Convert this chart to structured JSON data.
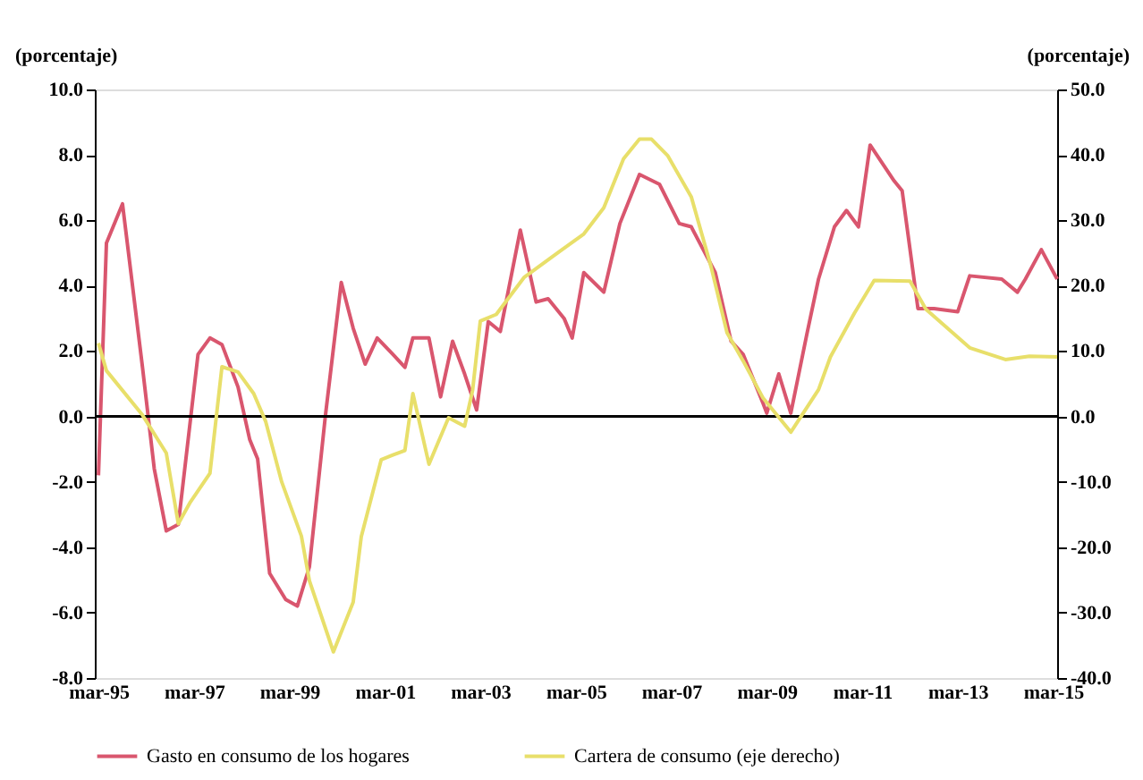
{
  "chart_data": {
    "type": "line",
    "ylabel": "(porcentaje)",
    "y2label": "(porcentaje)",
    "xlim": [
      "1995-02",
      "2015-04"
    ],
    "xticks": [
      {
        "value": "1995-03",
        "label": "mar-95"
      },
      {
        "value": "1997-03",
        "label": "mar-97"
      },
      {
        "value": "1999-03",
        "label": "mar-99"
      },
      {
        "value": "2001-03",
        "label": "mar-01"
      },
      {
        "value": "2003-03",
        "label": "mar-03"
      },
      {
        "value": "2005-03",
        "label": "mar-05"
      },
      {
        "value": "2007-03",
        "label": "mar-07"
      },
      {
        "value": "2009-03",
        "label": "mar-09"
      },
      {
        "value": "2011-03",
        "label": "mar-11"
      },
      {
        "value": "2013-03",
        "label": "mar-13"
      },
      {
        "value": "2015-03",
        "label": "mar-15"
      }
    ],
    "ylim": [
      -8,
      10
    ],
    "yticks": [
      {
        "value": -8,
        "label": "-8.0"
      },
      {
        "value": -6,
        "label": "-6.0"
      },
      {
        "value": -4,
        "label": "-4.0"
      },
      {
        "value": -2,
        "label": "-2.0"
      },
      {
        "value": 0,
        "label": "0.0"
      },
      {
        "value": 2,
        "label": "2.0"
      },
      {
        "value": 4,
        "label": "4.0"
      },
      {
        "value": 6,
        "label": "6.0"
      },
      {
        "value": 8,
        "label": "8.0"
      },
      {
        "value": 10,
        "label": "10.0"
      }
    ],
    "y2lim": [
      -40,
      50
    ],
    "y2ticks": [
      {
        "value": -40,
        "label": "-40.0"
      },
      {
        "value": -30,
        "label": "-30.0"
      },
      {
        "value": -20,
        "label": "-20.0"
      },
      {
        "value": -10,
        "label": "-10.0"
      },
      {
        "value": 0,
        "label": "0.0"
      },
      {
        "value": 10,
        "label": "10.0"
      },
      {
        "value": 20,
        "label": "20.0"
      },
      {
        "value": 30,
        "label": "30.0"
      },
      {
        "value": 40,
        "label": "40.0"
      },
      {
        "value": 50,
        "label": "50.0"
      }
    ],
    "grid": false,
    "legend": "bottom",
    "marker": "none",
    "line_style": "solid",
    "ref_lines": [
      {
        "axis": "y",
        "value": 0,
        "color": "#000000"
      }
    ],
    "series": [
      {
        "name": "Gasto en consumo de los hogares",
        "color": "#d9566e",
        "x": [
          "1995-03",
          "1995-05",
          "1995-09",
          "1996-02",
          "1996-05",
          "1996-08",
          "1996-11",
          "1997-04",
          "1997-07",
          "1997-10",
          "1998-02",
          "1998-05",
          "1998-07",
          "1998-10",
          "1999-02",
          "1999-05",
          "1999-08",
          "1999-12",
          "2000-04",
          "2000-07",
          "2000-10",
          "2001-01",
          "2001-05",
          "2001-08",
          "2001-10",
          "2002-02",
          "2002-05",
          "2002-08",
          "2002-11",
          "2003-02",
          "2003-05",
          "2003-08",
          "2004-01",
          "2004-05",
          "2004-08",
          "2004-12",
          "2005-02",
          "2005-05",
          "2005-10",
          "2006-02",
          "2006-07",
          "2006-12",
          "2007-05",
          "2007-08",
          "2007-11",
          "2008-02",
          "2008-06",
          "2008-09",
          "2009-02",
          "2009-03",
          "2009-06",
          "2009-09",
          "2010-01",
          "2010-04",
          "2010-08",
          "2010-11",
          "2011-02",
          "2011-05",
          "2011-11",
          "2012-01",
          "2012-05",
          "2012-09",
          "2013-03",
          "2013-06",
          "2014-02",
          "2014-06",
          "2014-08",
          "2014-12",
          "2015-04"
        ],
        "values": [
          -1.8,
          5.3,
          6.5,
          1.5,
          -1.6,
          -3.5,
          -3.3,
          1.9,
          2.4,
          2.2,
          0.9,
          -0.7,
          -1.3,
          -4.8,
          -5.6,
          -5.8,
          -4.6,
          0.0,
          4.1,
          2.7,
          1.6,
          2.4,
          1.9,
          1.5,
          2.4,
          2.4,
          0.6,
          2.3,
          1.3,
          0.2,
          2.9,
          2.6,
          5.7,
          3.5,
          3.6,
          3.0,
          2.4,
          4.4,
          3.8,
          5.9,
          7.4,
          7.1,
          5.9,
          5.8,
          5.1,
          4.4,
          2.3,
          1.9,
          0.4,
          0.1,
          1.3,
          0.1,
          2.5,
          4.2,
          5.8,
          6.3,
          5.8,
          8.3,
          7.2,
          6.9,
          3.3,
          3.3,
          3.2,
          4.3,
          4.2,
          3.8,
          4.2,
          5.1,
          4.2
        ]
      },
      {
        "name": "Cartera de consumo (eje derecho)",
        "color": "#e8df6a",
        "axis": "y2",
        "x": [
          "1995-03",
          "1995-05",
          "1996-02",
          "1996-08",
          "1996-11",
          "1997-02",
          "1997-07",
          "1997-10",
          "1998-02",
          "1998-06",
          "1998-09",
          "1999-01",
          "1999-06",
          "1999-08",
          "2000-02",
          "2000-07",
          "2000-09",
          "2001-02",
          "2001-05",
          "2001-08",
          "2001-10",
          "2002-02",
          "2002-07",
          "2002-11",
          "2003-01",
          "2003-03",
          "2003-07",
          "2004-02",
          "2004-11",
          "2005-05",
          "2005-10",
          "2006-03",
          "2006-07",
          "2006-10",
          "2007-02",
          "2007-08",
          "2008-01",
          "2008-05",
          "2008-09",
          "2009-02",
          "2009-09",
          "2010-04",
          "2010-07",
          "2011-01",
          "2011-06",
          "2012-03",
          "2012-07",
          "2013-06",
          "2014-03",
          "2014-09",
          "2015-04"
        ],
        "values": [
          11.2,
          7.0,
          0.2,
          -5.6,
          -16.4,
          -13.1,
          -8.7,
          7.6,
          6.8,
          3.5,
          -0.8,
          -10.0,
          -18.3,
          -25.1,
          -36.0,
          -28.4,
          -18.4,
          -6.6,
          -5.9,
          -5.2,
          3.5,
          -7.3,
          -0.2,
          -1.5,
          4.0,
          14.6,
          15.6,
          21.3,
          25.3,
          27.9,
          31.9,
          39.4,
          42.4,
          42.4,
          39.9,
          33.6,
          22.8,
          12.8,
          8.5,
          2.8,
          -2.4,
          4.1,
          9.1,
          15.8,
          20.8,
          20.7,
          16.4,
          10.5,
          8.7,
          9.2,
          9.1
        ]
      }
    ]
  }
}
